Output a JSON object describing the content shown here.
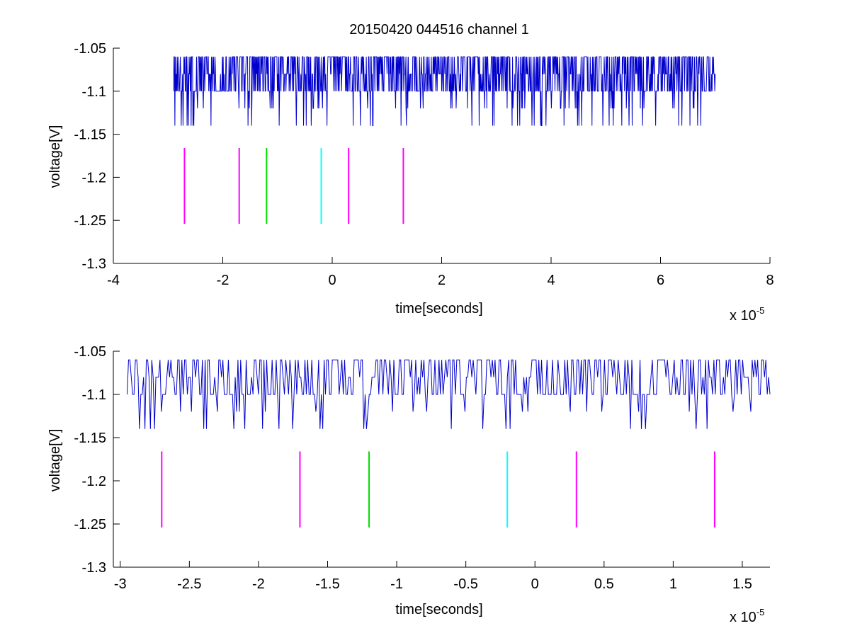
{
  "figure": {
    "title": "20150420 044516 channel 1"
  },
  "chart_data": [
    {
      "type": "line",
      "title": "20150420 044516 channel 1",
      "xlabel": "time[seconds]",
      "ylabel": "voltage[V]",
      "x_multiplier": "x 10",
      "x_multiplier_exp": "-5",
      "xlim": [
        -4,
        8
      ],
      "ylim": [
        -1.3,
        -1.05
      ],
      "xticks": [
        -4,
        -2,
        0,
        2,
        4,
        6,
        8
      ],
      "xtick_labels": [
        "-4",
        "-2",
        "0",
        "2",
        "4",
        "6",
        "8"
      ],
      "yticks": [
        -1.3,
        -1.25,
        -1.2,
        -1.15,
        -1.1,
        -1.05
      ],
      "ytick_labels": [
        "-1.3",
        "-1.25",
        "-1.2",
        "-1.15",
        "-1.1",
        "-1.05"
      ],
      "grid": false,
      "series": [
        {
          "color": "#0000cc",
          "x_start": -2.9,
          "x_end": 7.0,
          "baseline": -1.1,
          "levels": [
            -1.06,
            -1.08,
            -1.1,
            -1.12,
            -1.14
          ],
          "description_samples": 1200
        }
      ],
      "markers": [
        {
          "x": -2.7,
          "y_from": -1.254,
          "y_to": -1.166,
          "color": "#ff00ff"
        },
        {
          "x": -1.7,
          "y_from": -1.254,
          "y_to": -1.166,
          "color": "#ff00ff"
        },
        {
          "x": -1.2,
          "y_from": -1.254,
          "y_to": -1.166,
          "color": "#00dd00"
        },
        {
          "x": -0.2,
          "y_from": -1.254,
          "y_to": -1.166,
          "color": "#00ffff"
        },
        {
          "x": 0.3,
          "y_from": -1.254,
          "y_to": -1.166,
          "color": "#ff00ff"
        },
        {
          "x": 1.3,
          "y_from": -1.254,
          "y_to": -1.166,
          "color": "#ff00ff"
        }
      ]
    },
    {
      "type": "line",
      "title": "",
      "xlabel": "time[seconds]",
      "ylabel": "voltage[V]",
      "x_multiplier": "x 10",
      "x_multiplier_exp": "-5",
      "xlim": [
        -3.05,
        1.7
      ],
      "ylim": [
        -1.3,
        -1.05
      ],
      "xticks": [
        -3,
        -2.5,
        -2,
        -1.5,
        -1,
        -0.5,
        0,
        0.5,
        1,
        1.5
      ],
      "xtick_labels": [
        "-3",
        "-2.5",
        "-2",
        "-1.5",
        "-1",
        "-0.5",
        "0",
        "0.5",
        "1",
        "1.5"
      ],
      "yticks": [
        -1.3,
        -1.25,
        -1.2,
        -1.15,
        -1.1,
        -1.05
      ],
      "ytick_labels": [
        "-1.3",
        "-1.25",
        "-1.2",
        "-1.15",
        "-1.1",
        "-1.05"
      ],
      "grid": false,
      "series": [
        {
          "color": "#0000cc",
          "x_start": -2.95,
          "x_end": 1.7,
          "baseline": -1.1,
          "levels": [
            -1.06,
            -1.08,
            -1.1,
            -1.12,
            -1.14
          ],
          "description_samples": 470
        }
      ],
      "markers": [
        {
          "x": -2.7,
          "y_from": -1.254,
          "y_to": -1.166,
          "color": "#ff00ff"
        },
        {
          "x": -1.7,
          "y_from": -1.254,
          "y_to": -1.166,
          "color": "#ff00ff"
        },
        {
          "x": -1.2,
          "y_from": -1.254,
          "y_to": -1.166,
          "color": "#00dd00"
        },
        {
          "x": -0.2,
          "y_from": -1.254,
          "y_to": -1.166,
          "color": "#00ffff"
        },
        {
          "x": 0.3,
          "y_from": -1.254,
          "y_to": -1.166,
          "color": "#ff00ff"
        },
        {
          "x": 1.3,
          "y_from": -1.254,
          "y_to": -1.166,
          "color": "#ff00ff"
        }
      ]
    }
  ]
}
